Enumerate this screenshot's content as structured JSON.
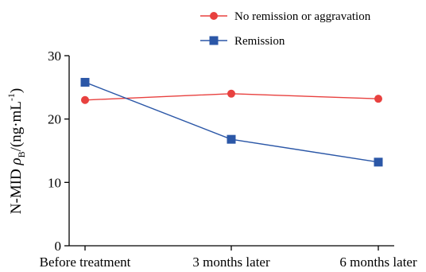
{
  "chart_data": {
    "type": "line",
    "categories": [
      "Before treatment",
      "3 months later",
      "6 months later"
    ],
    "series": [
      {
        "name": "No remission or aggravation",
        "values": [
          23.0,
          24.0,
          23.2
        ],
        "color": "#e8413f",
        "marker": "circle"
      },
      {
        "name": "Remission",
        "values": [
          25.8,
          16.8,
          13.2
        ],
        "color": "#2b57a7",
        "marker": "square"
      }
    ],
    "ylim": [
      0,
      30
    ],
    "yticks": [
      0,
      10,
      20,
      30
    ],
    "ylabel": {
      "prefix": "N-MID ",
      "rho": "ρ",
      "rho_sub": "B",
      "unit_open": "/(ng·mL",
      "unit_sup": "-1",
      "unit_close": ")"
    },
    "legend_position": "top",
    "grid": false
  }
}
